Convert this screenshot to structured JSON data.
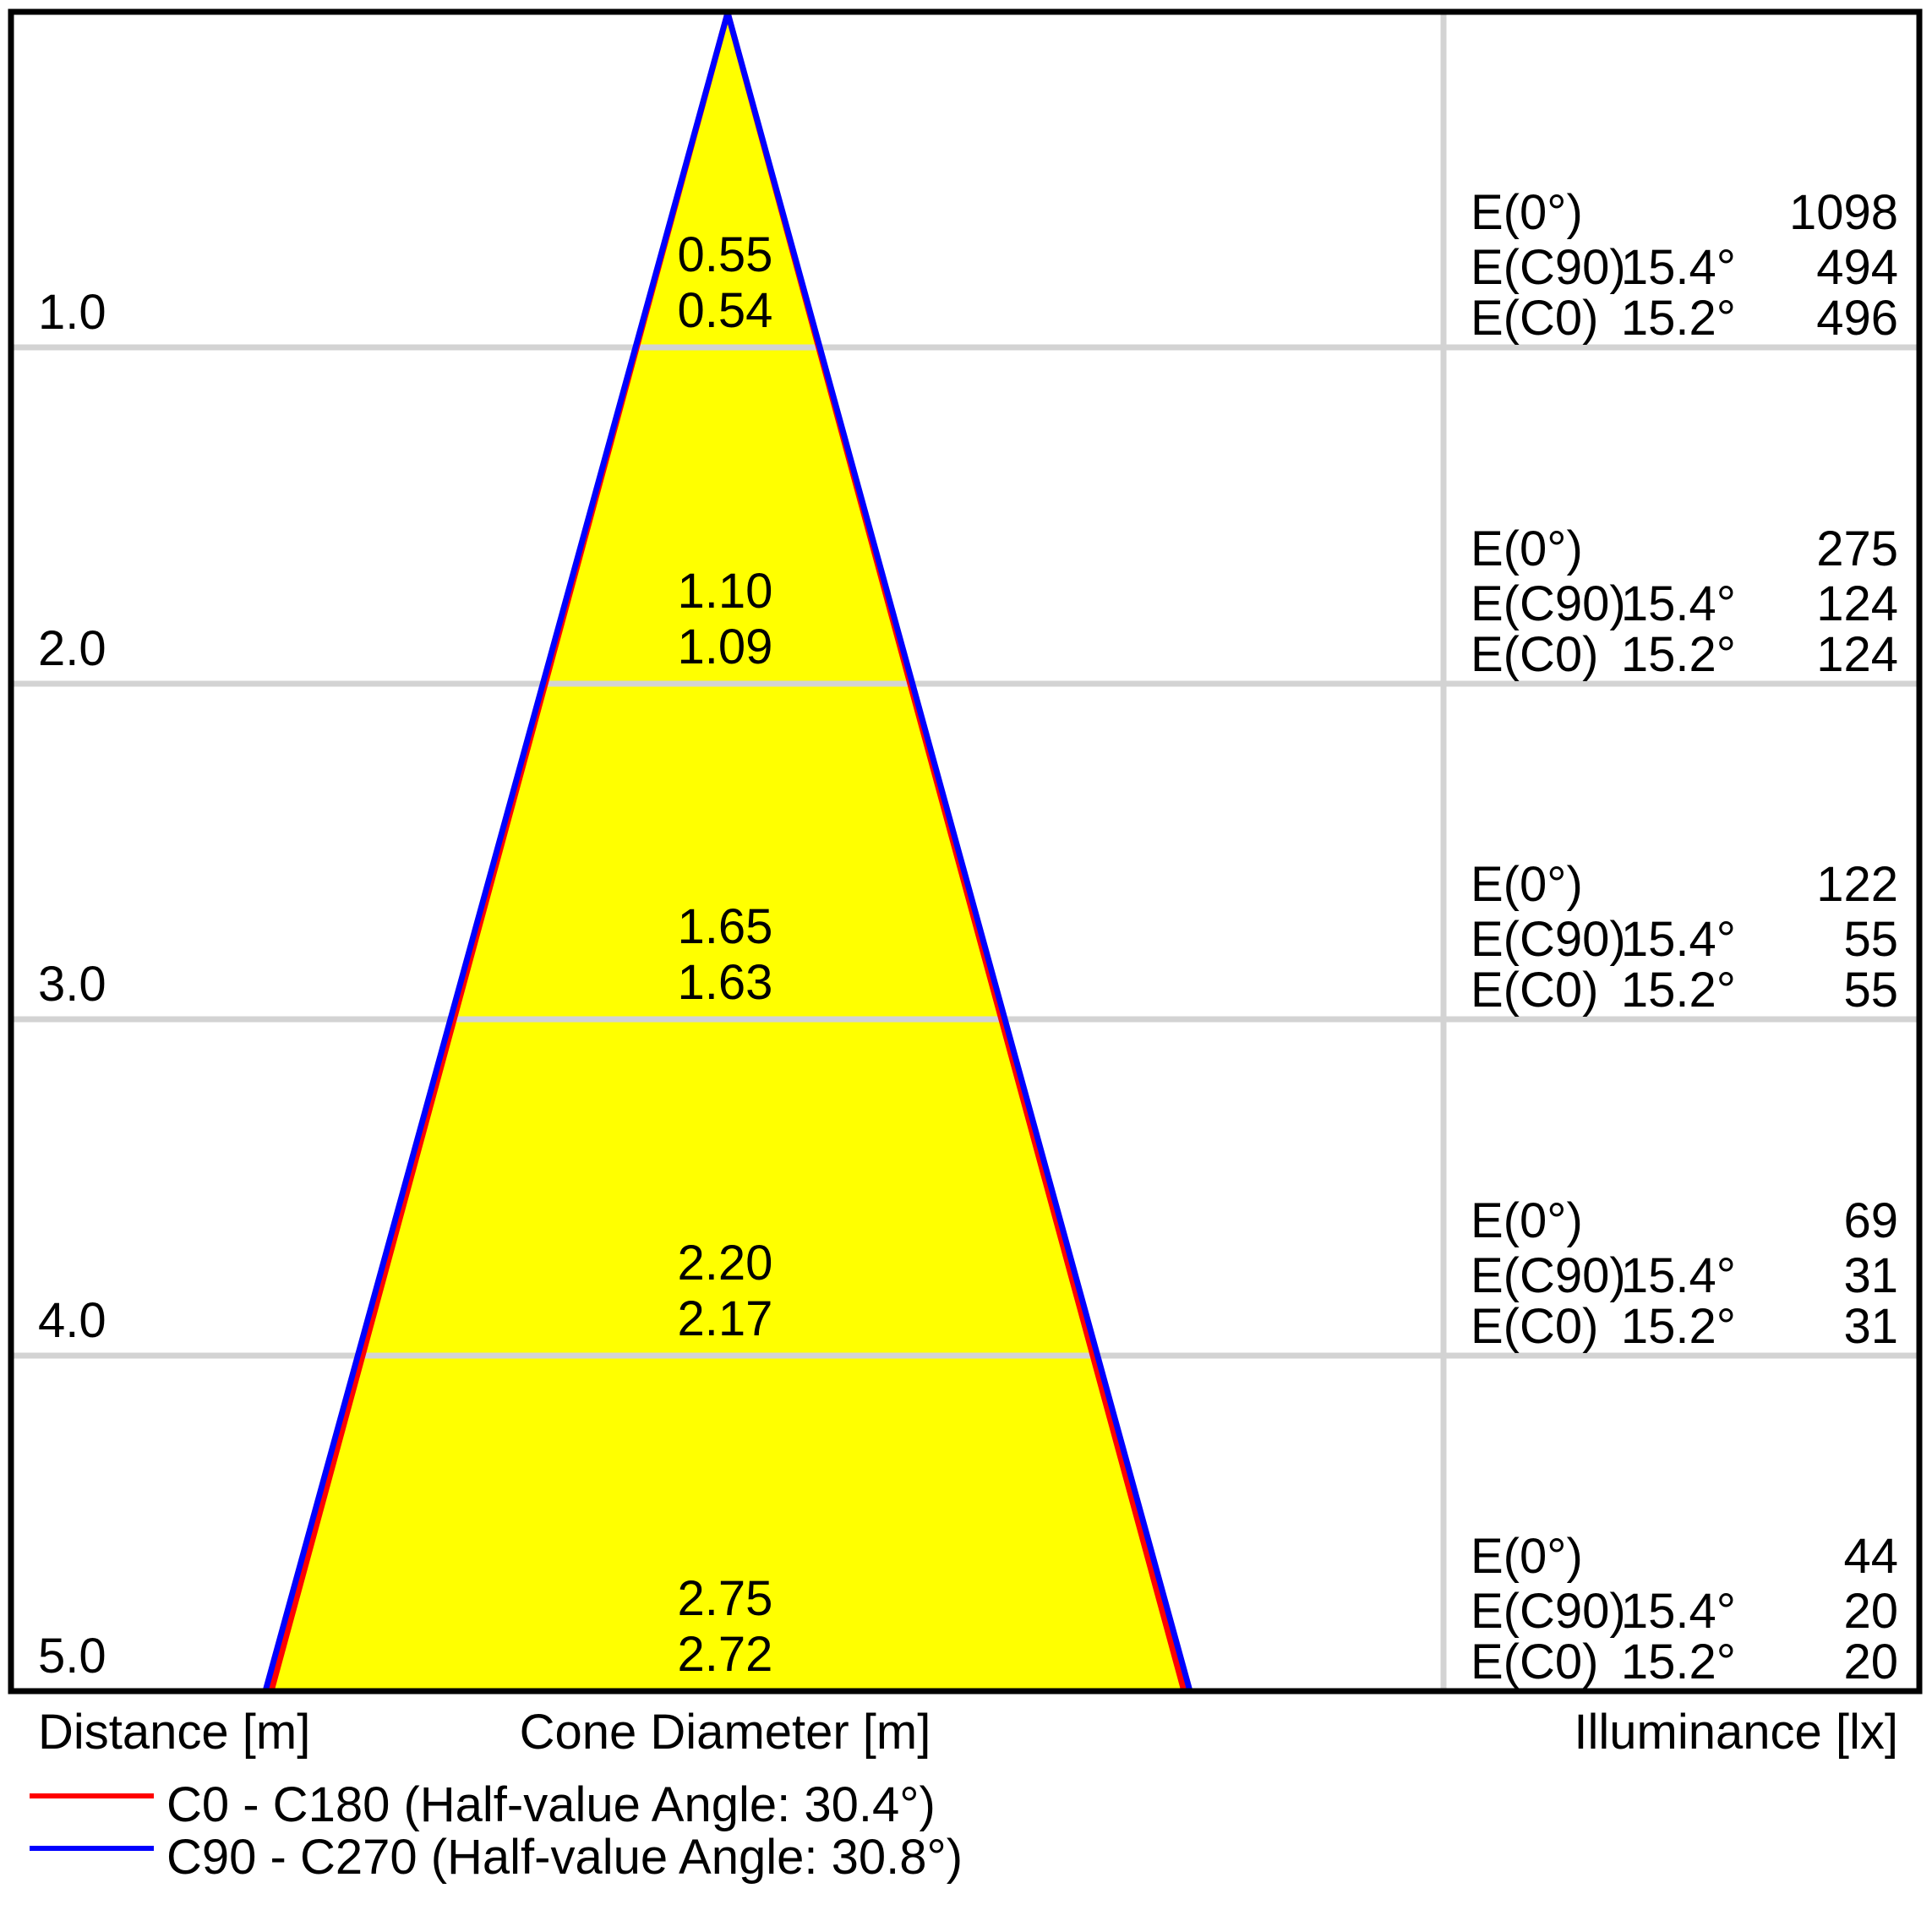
{
  "chart_data": {
    "type": "line",
    "subtype": "light-cone-diagram",
    "axis_labels": {
      "distance": "Distance [m]",
      "cone_diameter": "Cone Diameter [m]",
      "illuminance": "Illuminance [lx]"
    },
    "distances_m": [
      1.0,
      2.0,
      3.0,
      4.0,
      5.0
    ],
    "series": [
      {
        "name": "C0 - C180",
        "half_value_angle_deg": 30.4,
        "color": "#ff0000",
        "cone_diameters_m": [
          0.54,
          1.09,
          1.63,
          2.17,
          2.72
        ]
      },
      {
        "name": "C90 - C270",
        "half_value_angle_deg": 30.8,
        "color": "#0000ff",
        "cone_diameters_m": [
          0.55,
          1.1,
          1.65,
          2.2,
          2.75
        ]
      }
    ],
    "rows": [
      {
        "distance": "1.0",
        "cone_diameters": [
          "0.55",
          "0.54"
        ],
        "illuminance": [
          {
            "label": "E(0°)",
            "angle": "",
            "value": "1098"
          },
          {
            "label": "E(C90)",
            "angle": "15.4°",
            "value": "494"
          },
          {
            "label": "E(C0)",
            "angle": "15.2°",
            "value": "496"
          }
        ]
      },
      {
        "distance": "2.0",
        "cone_diameters": [
          "1.10",
          "1.09"
        ],
        "illuminance": [
          {
            "label": "E(0°)",
            "angle": "",
            "value": "275"
          },
          {
            "label": "E(C90)",
            "angle": "15.4°",
            "value": "124"
          },
          {
            "label": "E(C0)",
            "angle": "15.2°",
            "value": "124"
          }
        ]
      },
      {
        "distance": "3.0",
        "cone_diameters": [
          "1.65",
          "1.63"
        ],
        "illuminance": [
          {
            "label": "E(0°)",
            "angle": "",
            "value": "122"
          },
          {
            "label": "E(C90)",
            "angle": "15.4°",
            "value": "55"
          },
          {
            "label": "E(C0)",
            "angle": "15.2°",
            "value": "55"
          }
        ]
      },
      {
        "distance": "4.0",
        "cone_diameters": [
          "2.20",
          "2.17"
        ],
        "illuminance": [
          {
            "label": "E(0°)",
            "angle": "",
            "value": "69"
          },
          {
            "label": "E(C90)",
            "angle": "15.4°",
            "value": "31"
          },
          {
            "label": "E(C0)",
            "angle": "15.2°",
            "value": "31"
          }
        ]
      },
      {
        "distance": "5.0",
        "cone_diameters": [
          "2.75",
          "2.72"
        ],
        "illuminance": [
          {
            "label": "E(0°)",
            "angle": "",
            "value": "44"
          },
          {
            "label": "E(C90)",
            "angle": "15.4°",
            "value": "20"
          },
          {
            "label": "E(C0)",
            "angle": "15.2°",
            "value": "20"
          }
        ]
      }
    ],
    "legend": [
      {
        "label": "C0 - C180 (Half-value Angle: 30.4°)",
        "color": "#ff0000"
      },
      {
        "label": "C90 - C270 (Half-value Angle: 30.8°)",
        "color": "#0000ff"
      }
    ],
    "colors": {
      "cone_fill": "#ffff00",
      "c0_line": "#ff0000",
      "c90_line": "#0000ff",
      "gridline": "#d3d3d3",
      "border": "#000000"
    },
    "layout_hints": {
      "grid": "on",
      "legend_position": "bottom-left",
      "ylim_m": [
        0,
        5
      ]
    }
  }
}
